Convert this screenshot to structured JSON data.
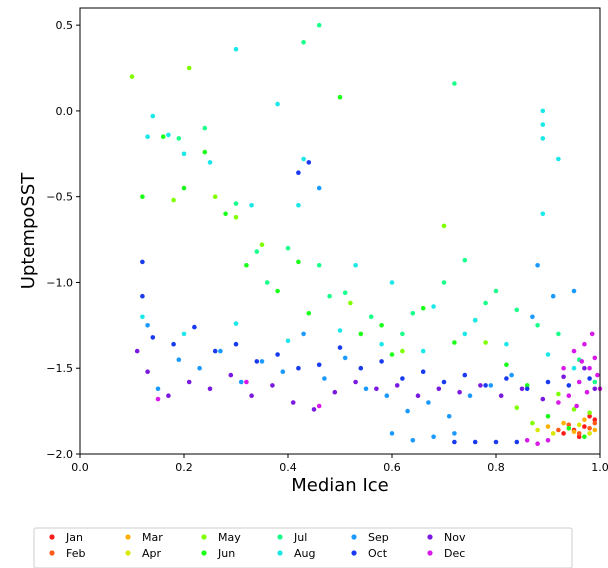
{
  "chart_data": {
    "type": "scatter",
    "title": "",
    "xlabel": "Median Ice",
    "ylabel": "UptempoSST",
    "xlim": [
      0.0,
      1.0
    ],
    "ylim": [
      -2.0,
      0.6
    ],
    "xticks": [
      "0.0",
      "0.2",
      "0.4",
      "0.6",
      "0.8",
      "1.0"
    ],
    "yticks": [
      "0.5",
      "0.0",
      "−0.5",
      "−1.0",
      "−1.5",
      "−2.0"
    ],
    "grid": false,
    "legend_position": "bottom",
    "series": [
      {
        "name": "Jan",
        "color": "#ff1a1a",
        "points": [
          [
            0.93,
            -1.88
          ],
          [
            0.95,
            -1.86
          ],
          [
            0.97,
            -1.84
          ],
          [
            0.99,
            -1.8
          ],
          [
            0.96,
            -1.9
          ],
          [
            0.98,
            -1.78
          ]
        ]
      },
      {
        "name": "Feb",
        "color": "#ff5a1a",
        "points": [
          [
            0.92,
            -1.86
          ],
          [
            0.94,
            -1.83
          ],
          [
            0.96,
            -1.88
          ],
          [
            0.98,
            -1.85
          ],
          [
            0.99,
            -1.82
          ]
        ]
      },
      {
        "name": "Mar",
        "color": "#ffb000",
        "points": [
          [
            0.9,
            -1.84
          ],
          [
            0.93,
            -1.82
          ],
          [
            0.95,
            -1.87
          ],
          [
            0.97,
            -1.8
          ],
          [
            0.99,
            -1.86
          ]
        ]
      },
      {
        "name": "Apr",
        "color": "#d8e800",
        "points": [
          [
            0.88,
            -1.86
          ],
          [
            0.91,
            -1.88
          ],
          [
            0.94,
            -1.85
          ],
          [
            0.96,
            -1.83
          ],
          [
            0.98,
            -1.88
          ]
        ]
      },
      {
        "name": "May",
        "color": "#7fff00",
        "points": [
          [
            0.1,
            0.2
          ],
          [
            0.21,
            0.25
          ],
          [
            0.18,
            -0.52
          ],
          [
            0.3,
            -0.62
          ],
          [
            0.26,
            -0.5
          ],
          [
            0.35,
            -0.78
          ],
          [
            0.52,
            -1.12
          ],
          [
            0.7,
            -0.67
          ],
          [
            0.84,
            -1.73
          ],
          [
            0.87,
            -1.82
          ],
          [
            0.92,
            -1.65
          ],
          [
            0.95,
            -1.74
          ],
          [
            0.98,
            -1.76
          ],
          [
            0.62,
            -1.4
          ],
          [
            0.78,
            -1.35
          ]
        ]
      },
      {
        "name": "Jun",
        "color": "#1aff1a",
        "points": [
          [
            0.12,
            -0.5
          ],
          [
            0.16,
            -0.15
          ],
          [
            0.2,
            -0.45
          ],
          [
            0.24,
            -0.24
          ],
          [
            0.28,
            -0.6
          ],
          [
            0.32,
            -0.9
          ],
          [
            0.38,
            -1.05
          ],
          [
            0.44,
            -1.18
          ],
          [
            0.5,
            0.08
          ],
          [
            0.54,
            -1.3
          ],
          [
            0.6,
            -1.42
          ],
          [
            0.66,
            -1.15
          ],
          [
            0.72,
            -1.35
          ],
          [
            0.76,
            -1.22
          ],
          [
            0.82,
            -1.48
          ],
          [
            0.86,
            -1.6
          ],
          [
            0.9,
            -1.78
          ],
          [
            0.94,
            -1.85
          ],
          [
            0.97,
            -1.9
          ],
          [
            0.42,
            -0.88
          ],
          [
            0.58,
            -1.25
          ]
        ]
      },
      {
        "name": "Jul",
        "color": "#1aff8a",
        "points": [
          [
            0.46,
            0.5
          ],
          [
            0.43,
            0.4
          ],
          [
            0.72,
            0.16
          ],
          [
            0.19,
            -0.16
          ],
          [
            0.24,
            -0.1
          ],
          [
            0.3,
            -0.54
          ],
          [
            0.34,
            -0.82
          ],
          [
            0.4,
            -0.8
          ],
          [
            0.46,
            -0.9
          ],
          [
            0.51,
            -1.06
          ],
          [
            0.56,
            -1.2
          ],
          [
            0.62,
            -1.3
          ],
          [
            0.7,
            -1.0
          ],
          [
            0.74,
            -0.87
          ],
          [
            0.78,
            -1.12
          ],
          [
            0.84,
            -1.16
          ],
          [
            0.88,
            -1.25
          ],
          [
            0.92,
            -1.3
          ],
          [
            0.96,
            -1.45
          ],
          [
            0.99,
            -1.58
          ],
          [
            0.36,
            -1.0
          ],
          [
            0.48,
            -1.08
          ],
          [
            0.64,
            -1.18
          ],
          [
            0.8,
            -1.05
          ]
        ]
      },
      {
        "name": "Aug",
        "color": "#1ae8e8",
        "points": [
          [
            0.3,
            0.36
          ],
          [
            0.14,
            -0.03
          ],
          [
            0.13,
            -0.15
          ],
          [
            0.17,
            -0.14
          ],
          [
            0.2,
            -0.25
          ],
          [
            0.25,
            -0.3
          ],
          [
            0.38,
            0.04
          ],
          [
            0.43,
            -0.28
          ],
          [
            0.33,
            -0.55
          ],
          [
            0.42,
            -0.55
          ],
          [
            0.53,
            -0.9
          ],
          [
            0.6,
            -1.0
          ],
          [
            0.68,
            -1.14
          ],
          [
            0.76,
            -1.22
          ],
          [
            0.89,
            0.0
          ],
          [
            0.89,
            -0.08
          ],
          [
            0.89,
            -0.16
          ],
          [
            0.89,
            -0.6
          ],
          [
            0.92,
            -0.28
          ],
          [
            0.12,
            -1.2
          ],
          [
            0.2,
            -1.3
          ],
          [
            0.3,
            -1.24
          ],
          [
            0.4,
            -1.34
          ],
          [
            0.5,
            -1.28
          ],
          [
            0.58,
            -1.36
          ],
          [
            0.66,
            -1.4
          ],
          [
            0.74,
            -1.3
          ],
          [
            0.82,
            -1.36
          ],
          [
            0.9,
            -1.42
          ],
          [
            0.95,
            -1.5
          ]
        ]
      },
      {
        "name": "Sep",
        "color": "#1a9aff",
        "points": [
          [
            0.13,
            -1.25
          ],
          [
            0.15,
            -1.62
          ],
          [
            0.19,
            -1.45
          ],
          [
            0.23,
            -1.5
          ],
          [
            0.27,
            -1.4
          ],
          [
            0.31,
            -1.58
          ],
          [
            0.35,
            -1.46
          ],
          [
            0.39,
            -1.52
          ],
          [
            0.43,
            -1.3
          ],
          [
            0.47,
            -1.56
          ],
          [
            0.51,
            -1.44
          ],
          [
            0.55,
            -1.62
          ],
          [
            0.59,
            -1.66
          ],
          [
            0.63,
            -1.75
          ],
          [
            0.67,
            -1.7
          ],
          [
            0.71,
            -1.78
          ],
          [
            0.75,
            -1.66
          ],
          [
            0.79,
            -1.6
          ],
          [
            0.83,
            -1.54
          ],
          [
            0.87,
            -1.2
          ],
          [
            0.91,
            -1.08
          ],
          [
            0.95,
            -1.05
          ],
          [
            0.6,
            -1.88
          ],
          [
            0.64,
            -1.92
          ],
          [
            0.68,
            -1.9
          ],
          [
            0.72,
            -1.88
          ],
          [
            0.46,
            -0.45
          ],
          [
            0.88,
            -0.9
          ]
        ]
      },
      {
        "name": "Oct",
        "color": "#1a3af0",
        "points": [
          [
            0.12,
            -0.88
          ],
          [
            0.12,
            -1.08
          ],
          [
            0.14,
            -1.32
          ],
          [
            0.18,
            -1.36
          ],
          [
            0.22,
            -1.26
          ],
          [
            0.26,
            -1.4
          ],
          [
            0.3,
            -1.36
          ],
          [
            0.34,
            -1.46
          ],
          [
            0.38,
            -1.42
          ],
          [
            0.42,
            -1.5
          ],
          [
            0.44,
            -0.3
          ],
          [
            0.42,
            -0.36
          ],
          [
            0.46,
            -1.48
          ],
          [
            0.5,
            -1.38
          ],
          [
            0.54,
            -1.5
          ],
          [
            0.58,
            -1.46
          ],
          [
            0.62,
            -1.56
          ],
          [
            0.66,
            -1.52
          ],
          [
            0.7,
            -1.58
          ],
          [
            0.74,
            -1.54
          ],
          [
            0.78,
            -1.6
          ],
          [
            0.82,
            -1.56
          ],
          [
            0.86,
            -1.62
          ],
          [
            0.9,
            -1.58
          ],
          [
            0.94,
            -1.6
          ],
          [
            0.98,
            -1.56
          ],
          [
            0.72,
            -1.93
          ],
          [
            0.76,
            -1.93
          ],
          [
            0.8,
            -1.93
          ],
          [
            0.84,
            -1.93
          ]
        ]
      },
      {
        "name": "Nov",
        "color": "#7a1ae0",
        "points": [
          [
            0.11,
            -1.4
          ],
          [
            0.13,
            -1.52
          ],
          [
            0.17,
            -1.66
          ],
          [
            0.21,
            -1.58
          ],
          [
            0.25,
            -1.62
          ],
          [
            0.29,
            -1.54
          ],
          [
            0.33,
            -1.66
          ],
          [
            0.37,
            -1.6
          ],
          [
            0.41,
            -1.7
          ],
          [
            0.45,
            -1.74
          ],
          [
            0.49,
            -1.64
          ],
          [
            0.53,
            -1.58
          ],
          [
            0.57,
            -1.62
          ],
          [
            0.61,
            -1.6
          ],
          [
            0.65,
            -1.66
          ],
          [
            0.69,
            -1.62
          ],
          [
            0.73,
            -1.64
          ],
          [
            0.77,
            -1.6
          ],
          [
            0.81,
            -1.66
          ],
          [
            0.85,
            -1.62
          ],
          [
            0.89,
            -1.68
          ],
          [
            0.93,
            -1.55
          ],
          [
            0.97,
            -1.5
          ],
          [
            0.99,
            -1.62
          ]
        ]
      },
      {
        "name": "Dec",
        "color": "#d81ae8",
        "points": [
          [
            0.15,
            -1.68
          ],
          [
            0.32,
            -1.58
          ],
          [
            0.46,
            -1.72
          ],
          [
            0.86,
            -1.92
          ],
          [
            0.88,
            -1.94
          ],
          [
            0.9,
            -1.92
          ],
          [
            0.92,
            -1.7
          ],
          [
            0.93,
            -1.5
          ],
          [
            0.94,
            -1.66
          ],
          [
            0.95,
            -1.4
          ],
          [
            0.96,
            -1.58
          ],
          [
            0.97,
            -1.36
          ],
          [
            0.98,
            -1.5
          ],
          [
            0.99,
            -1.44
          ],
          [
            1.0,
            -1.62
          ],
          [
            0.955,
            -1.72
          ],
          [
            0.975,
            -1.64
          ],
          [
            0.985,
            -1.3
          ],
          [
            0.995,
            -1.54
          ],
          [
            0.965,
            -1.46
          ]
        ]
      }
    ]
  }
}
